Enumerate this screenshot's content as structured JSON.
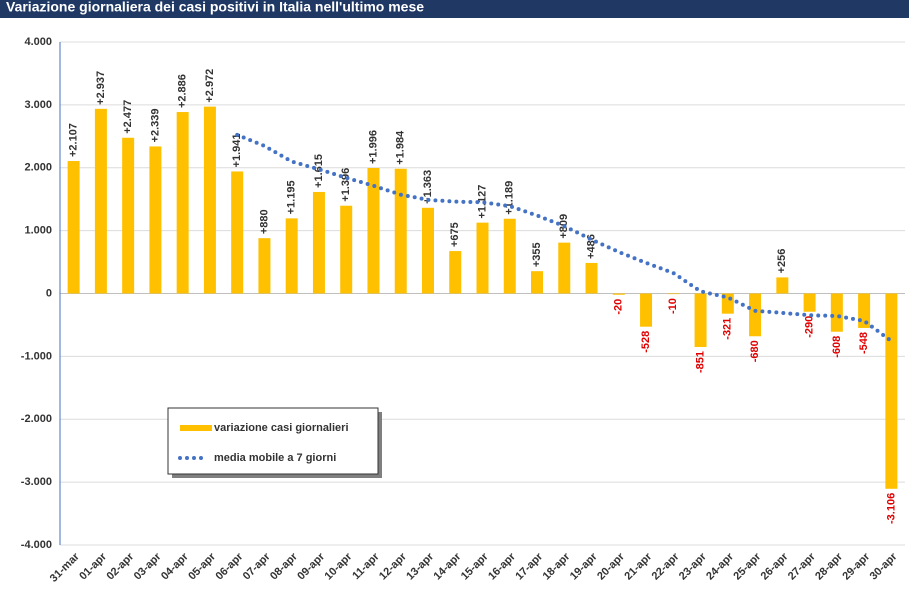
{
  "chart_data": {
    "type": "bar",
    "title": "Variazione giornaliera dei casi positivi in Italia nell'ultimo mese",
    "categories": [
      "31-mar",
      "01-apr",
      "02-apr",
      "03-apr",
      "04-apr",
      "05-apr",
      "06-apr",
      "07-apr",
      "08-apr",
      "09-apr",
      "10-apr",
      "11-apr",
      "12-apr",
      "13-apr",
      "14-apr",
      "15-apr",
      "16-apr",
      "17-apr",
      "18-apr",
      "19-apr",
      "20-apr",
      "21-apr",
      "22-apr",
      "23-apr",
      "24-apr",
      "25-apr",
      "26-apr",
      "27-apr",
      "28-apr",
      "29-apr",
      "30-apr"
    ],
    "series": [
      {
        "name": "variazione casi giornalieri",
        "type": "bar",
        "color": "#ffc000",
        "values": [
          2107,
          2937,
          2477,
          2339,
          2886,
          2972,
          1941,
          880,
          1195,
          1615,
          1396,
          1996,
          1984,
          1363,
          675,
          1127,
          1189,
          355,
          809,
          486,
          -20,
          -528,
          -10,
          -851,
          -321,
          -680,
          256,
          -290,
          -608,
          -548,
          -3106
        ],
        "value_labels": [
          "+2.107",
          "+2.937",
          "+2.477",
          "+2.339",
          "+2.886",
          "+2.972",
          "+1.941",
          "+880",
          "+1.195",
          "+1.615",
          "+1.396",
          "+1.996",
          "+1.984",
          "+1.363",
          "+675",
          "+1.127",
          "+1.189",
          "+355",
          "+809",
          "+486",
          "-20",
          "-528",
          "-10",
          "-851",
          "-321",
          "-680",
          "+256",
          "-290",
          "-608",
          "-548",
          "-3.106"
        ]
      },
      {
        "name": "media mobile a 7 giorni",
        "type": "line",
        "color": "#4472c4",
        "values": [
          null,
          null,
          null,
          null,
          null,
          null,
          2523,
          2347,
          2099,
          1975,
          1841,
          1714,
          1572,
          1490,
          1461,
          1451,
          1390,
          1241,
          1072,
          858,
          660,
          488,
          326,
          34,
          -62,
          -275,
          -308,
          -346,
          -358,
          -435,
          -757
        ]
      }
    ],
    "ylim": [
      -4000,
      4000
    ],
    "yticks": [
      {
        "value": -4000,
        "label": "-4.000"
      },
      {
        "value": -3000,
        "label": "-3.000"
      },
      {
        "value": -2000,
        "label": "-2.000"
      },
      {
        "value": -1000,
        "label": "-1.000"
      },
      0,
      {
        "value": 1000,
        "label": "1.000"
      },
      {
        "value": 2000,
        "label": "2.000"
      },
      {
        "value": 3000,
        "label": "3.000"
      },
      {
        "value": 4000,
        "label": "4.000"
      }
    ],
    "grid": true,
    "legend": "lower left"
  }
}
